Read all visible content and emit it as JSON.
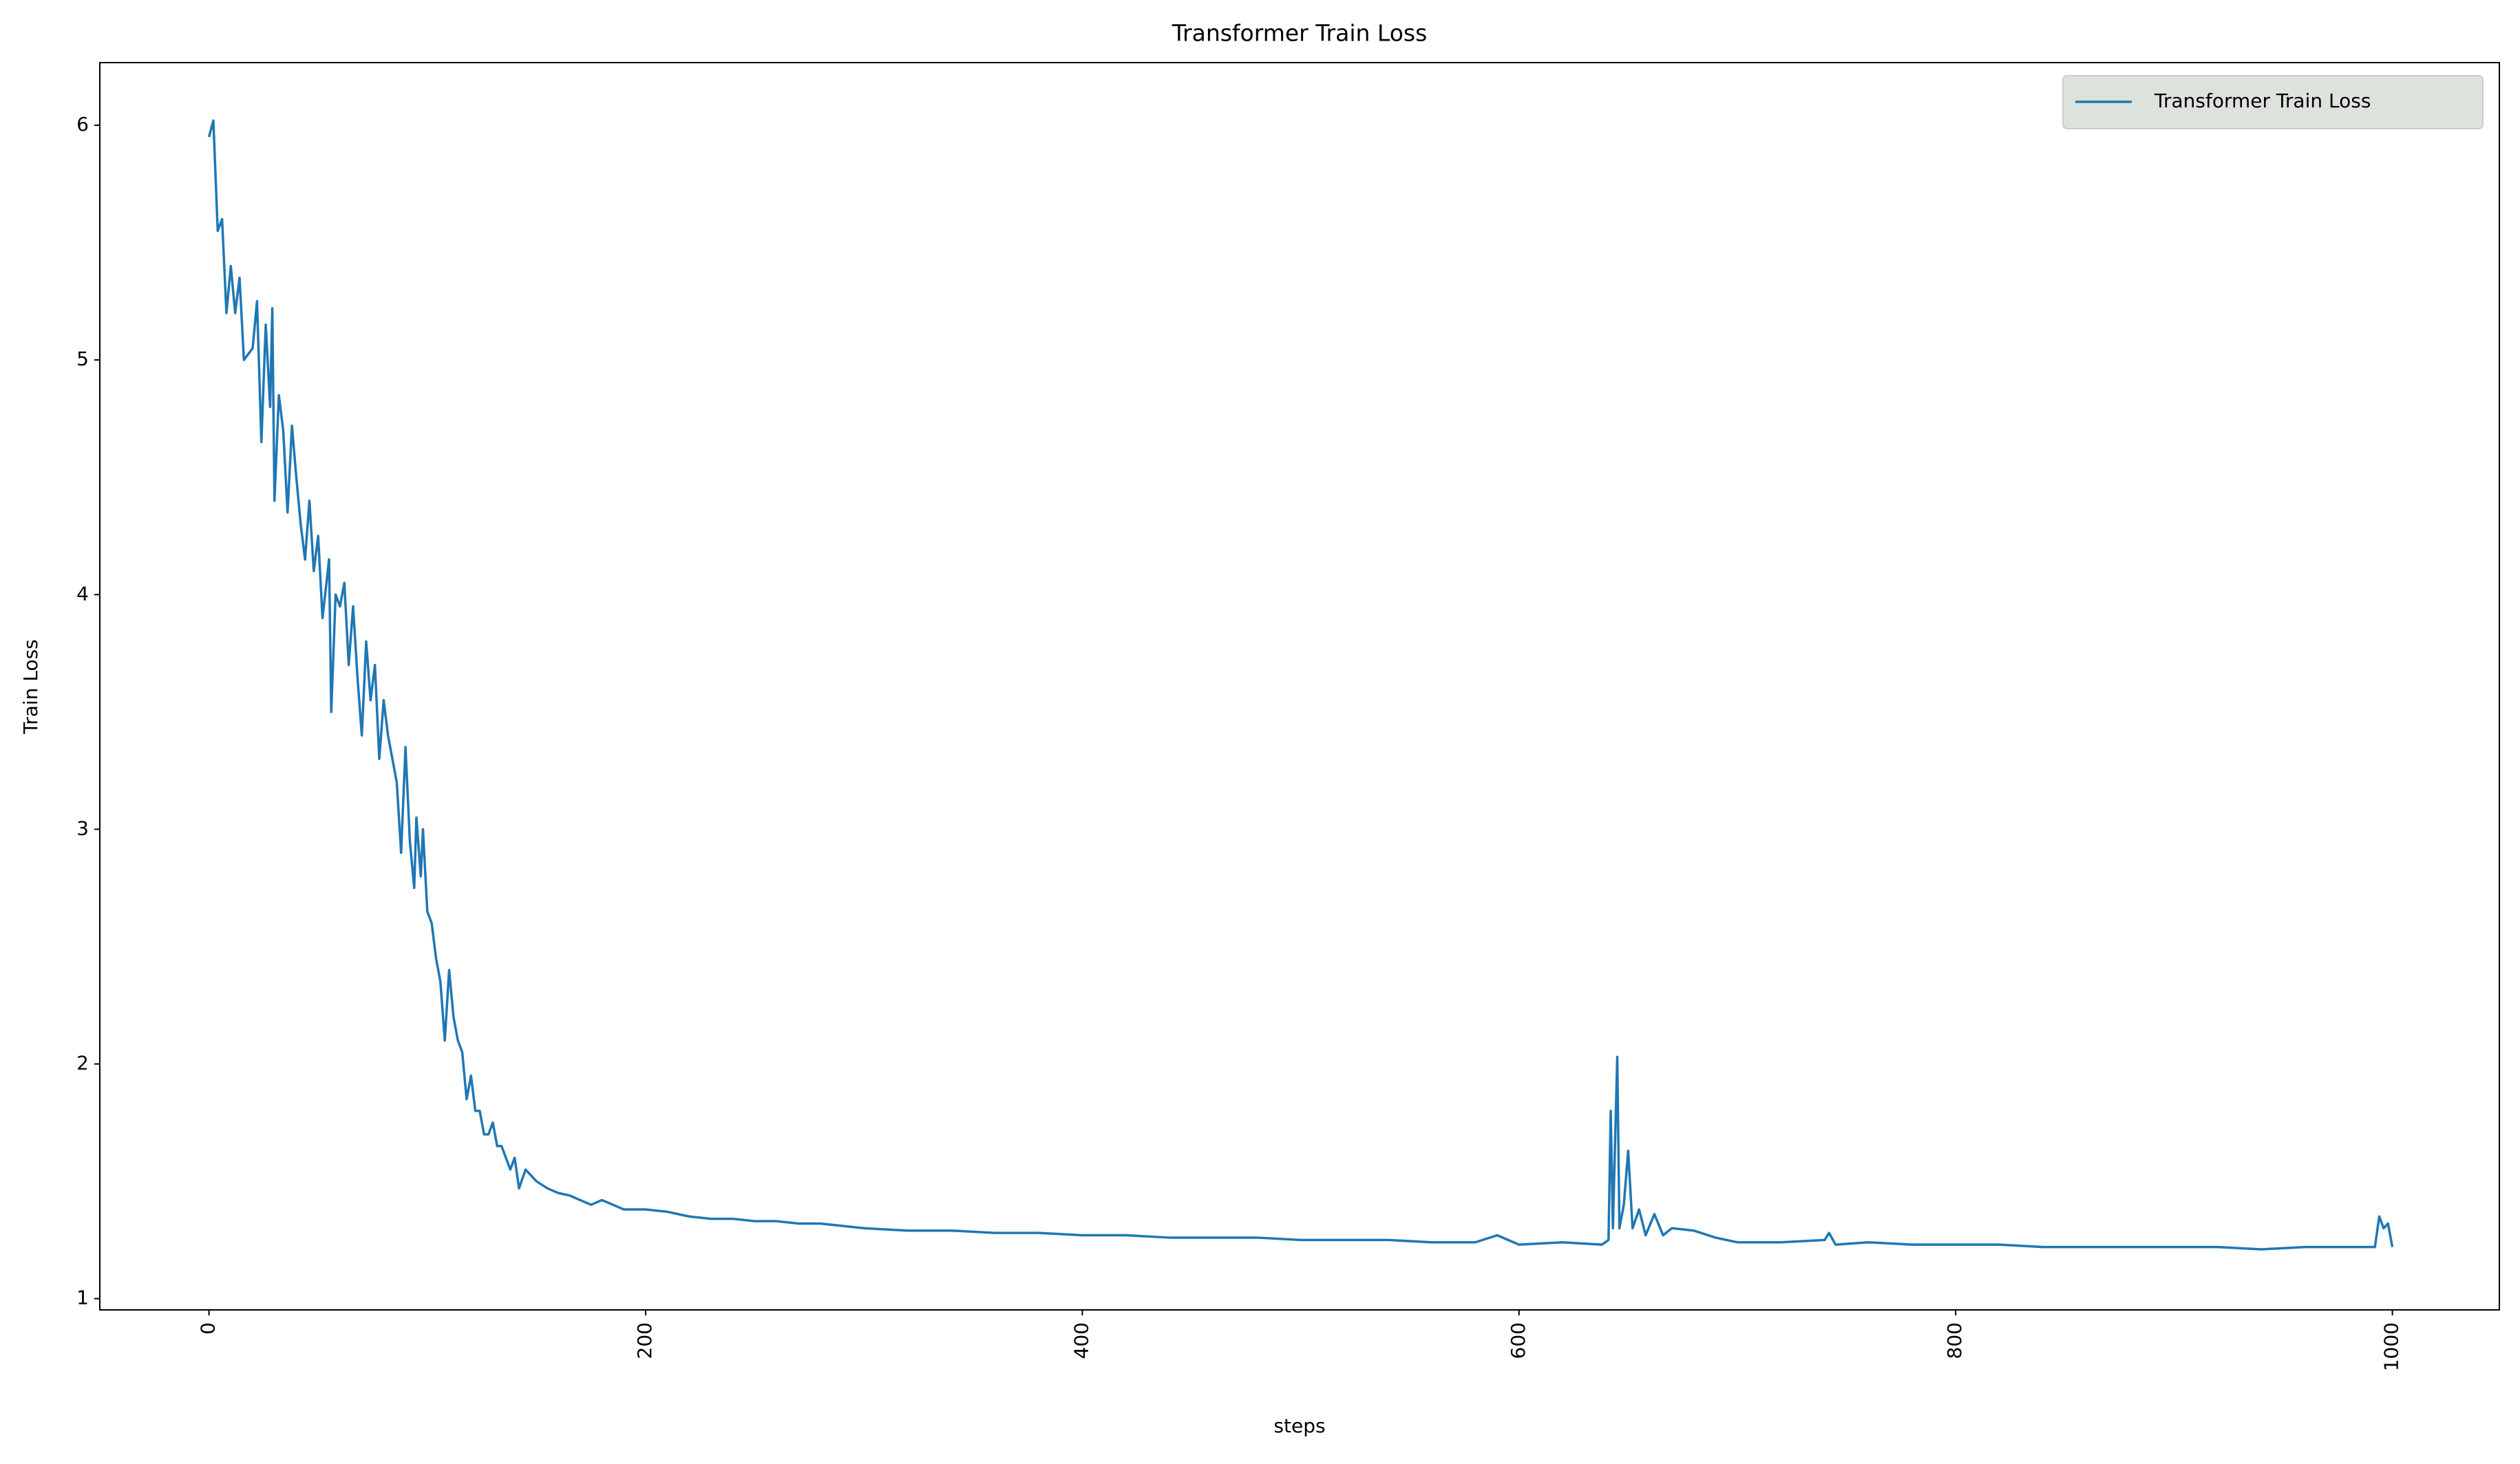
{
  "chart_data": {
    "type": "line",
    "title": "Transformer Train Loss",
    "x_label": "steps",
    "y_label": "Train Loss",
    "x": [
      0,
      2,
      4,
      6,
      8,
      10,
      12,
      14,
      16,
      20,
      22,
      24,
      26,
      28,
      29,
      30,
      32,
      34,
      36,
      38,
      40,
      42,
      44,
      46,
      48,
      50,
      52,
      55,
      56,
      58,
      60,
      62,
      64,
      66,
      68,
      70,
      72,
      74,
      76,
      78,
      80,
      82,
      84,
      86,
      88,
      90,
      92,
      94,
      95,
      97,
      98,
      100,
      102,
      104,
      106,
      108,
      110,
      112,
      114,
      116,
      118,
      120,
      122,
      124,
      126,
      128,
      130,
      132,
      134,
      136,
      138,
      140,
      142,
      145,
      150,
      155,
      160,
      165,
      170,
      175,
      180,
      185,
      190,
      200,
      210,
      220,
      230,
      240,
      250,
      260,
      270,
      280,
      290,
      300,
      320,
      340,
      360,
      380,
      400,
      420,
      440,
      460,
      480,
      500,
      520,
      540,
      560,
      580,
      590,
      600,
      620,
      638,
      641,
      642,
      643,
      645,
      646,
      648,
      650,
      652,
      655,
      658,
      662,
      666,
      670,
      680,
      690,
      700,
      720,
      740,
      742,
      745,
      760,
      780,
      800,
      820,
      840,
      860,
      880,
      900,
      920,
      940,
      960,
      980,
      992,
      994,
      996,
      998,
      1000
    ],
    "series": [
      {
        "name": "Transformer Train Loss",
        "color": "#1f77b4",
        "values": [
          5.95,
          6.02,
          5.55,
          5.6,
          5.2,
          5.4,
          5.2,
          5.35,
          5.0,
          5.05,
          5.25,
          4.65,
          5.15,
          4.8,
          5.22,
          4.4,
          4.85,
          4.7,
          4.35,
          4.72,
          4.5,
          4.3,
          4.15,
          4.4,
          4.1,
          4.25,
          3.9,
          4.15,
          3.5,
          4.0,
          3.95,
          4.05,
          3.7,
          3.95,
          3.65,
          3.4,
          3.8,
          3.55,
          3.7,
          3.3,
          3.55,
          3.4,
          3.3,
          3.2,
          2.9,
          3.35,
          2.95,
          2.75,
          3.05,
          2.8,
          3.0,
          2.65,
          2.6,
          2.45,
          2.35,
          2.1,
          2.4,
          2.2,
          2.1,
          2.05,
          1.85,
          1.95,
          1.8,
          1.8,
          1.7,
          1.7,
          1.75,
          1.65,
          1.65,
          1.6,
          1.55,
          1.6,
          1.47,
          1.55,
          1.5,
          1.47,
          1.45,
          1.44,
          1.42,
          1.4,
          1.42,
          1.4,
          1.38,
          1.38,
          1.37,
          1.35,
          1.34,
          1.34,
          1.33,
          1.33,
          1.32,
          1.32,
          1.31,
          1.3,
          1.29,
          1.29,
          1.28,
          1.28,
          1.27,
          1.27,
          1.26,
          1.26,
          1.26,
          1.25,
          1.25,
          1.25,
          1.24,
          1.24,
          1.27,
          1.23,
          1.24,
          1.23,
          1.25,
          1.8,
          1.3,
          2.03,
          1.3,
          1.4,
          1.63,
          1.3,
          1.38,
          1.27,
          1.36,
          1.27,
          1.3,
          1.29,
          1.26,
          1.24,
          1.24,
          1.25,
          1.28,
          1.23,
          1.24,
          1.23,
          1.23,
          1.23,
          1.22,
          1.22,
          1.22,
          1.22,
          1.22,
          1.21,
          1.22,
          1.22,
          1.22,
          1.35,
          1.3,
          1.32,
          1.22
        ]
      }
    ],
    "xlim": [
      -50,
      1049
    ],
    "ylim": [
      0.952,
      6.267
    ],
    "xticks": [
      0,
      200,
      400,
      600,
      800,
      1000
    ],
    "yticks": [
      1,
      2,
      3,
      4,
      5,
      6
    ],
    "x_tick_rotation": 90,
    "grid": false,
    "legend_location": "upper right",
    "legend_background": "#dde2dc"
  }
}
